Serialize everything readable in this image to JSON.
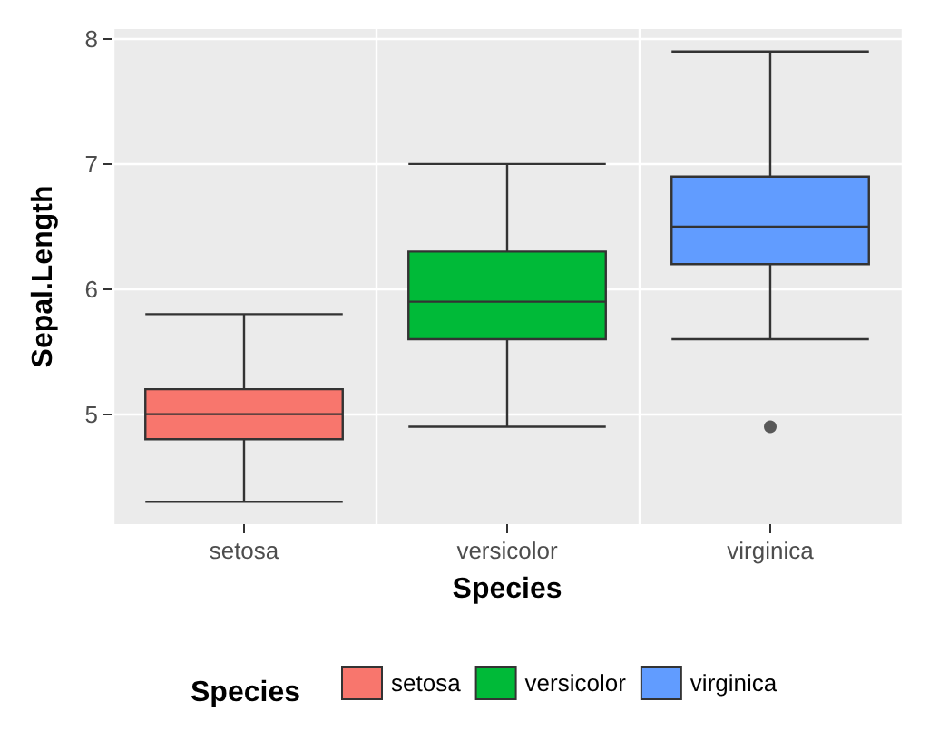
{
  "chart_data": {
    "type": "box",
    "xlabel": "Species",
    "ylabel": "Sepal.Length",
    "legend_title": "Species",
    "categories": [
      "setosa",
      "versicolor",
      "virginica"
    ],
    "series": [
      {
        "name": "setosa",
        "color": "#f8766d",
        "boxes": [
          {
            "low": 4.3,
            "q1": 4.8,
            "median": 5.0,
            "q3": 5.2,
            "high": 5.8
          },
          null,
          null
        ]
      },
      {
        "name": "versicolor",
        "color": "#00ba38",
        "boxes": [
          null,
          {
            "low": 4.9,
            "q1": 5.6,
            "median": 5.9,
            "q3": 6.3,
            "high": 7.0
          },
          null
        ]
      },
      {
        "name": "virginica",
        "color": "#619cff",
        "boxes": [
          null,
          null,
          {
            "low": 5.6,
            "q1": 6.2,
            "median": 6.5,
            "q3": 6.9,
            "high": 7.9,
            "outliers": [
              4.9
            ]
          }
        ]
      }
    ],
    "ylim": [
      4.12,
      8.08
    ],
    "yticks": [
      5,
      6,
      7,
      8
    ],
    "grid": true,
    "legend": "bottom"
  }
}
